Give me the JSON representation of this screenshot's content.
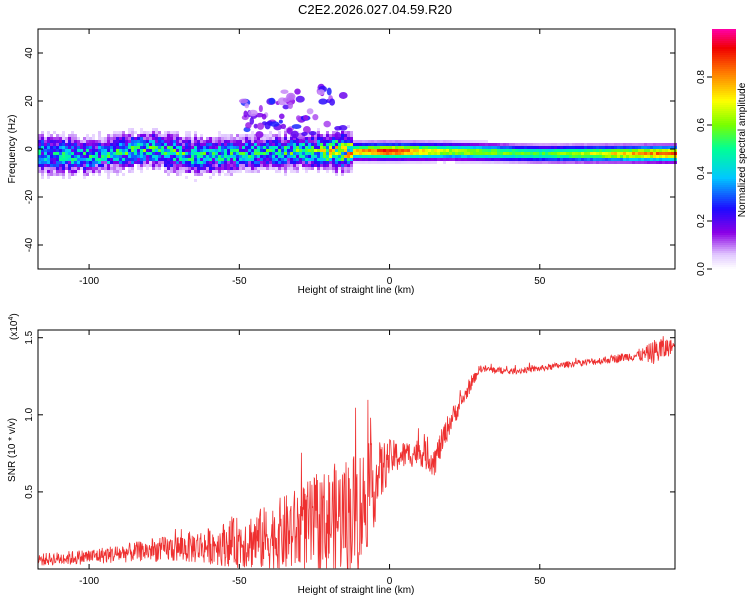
{
  "title": "C2E2.2026.027.04.59.R20",
  "chart_data": [
    {
      "type": "heatmap",
      "name": "spectrogram",
      "xlabel": "Height of straight line (km)",
      "ylabel": "Frequency (Hz)",
      "xlim": [
        -117,
        95
      ],
      "ylim": [
        -50,
        50
      ],
      "xticks": [
        -100,
        -50,
        0,
        50
      ],
      "yticks": [
        -40,
        -20,
        0,
        20,
        40
      ],
      "colorbar": {
        "label": "Normalized spectral amplitude",
        "range": [
          0,
          1
        ],
        "ticks": [
          0.0,
          0.2,
          0.4,
          0.6,
          0.8
        ],
        "tick_labels": [
          "0.0",
          "0.2",
          "0.4",
          "0.6",
          "0.8"
        ]
      },
      "ridge": [
        {
          "x": -117,
          "f": -2,
          "amp": 0.45
        },
        {
          "x": -100,
          "f": -3,
          "amp": 0.45
        },
        {
          "x": -80,
          "f": 0,
          "amp": 0.5
        },
        {
          "x": -65,
          "f": -3,
          "amp": 0.5
        },
        {
          "x": -50,
          "f": -2,
          "amp": 0.45
        },
        {
          "x": -30,
          "f": -1,
          "amp": 0.5
        },
        {
          "x": -15,
          "f": -1,
          "amp": 0.7
        },
        {
          "x": 0,
          "f": -1,
          "amp": 0.9
        },
        {
          "x": 20,
          "f": -1,
          "amp": 0.65
        },
        {
          "x": 50,
          "f": -2,
          "amp": 0.55
        },
        {
          "x": 80,
          "f": -2,
          "amp": 0.75
        },
        {
          "x": 95,
          "f": -2,
          "amp": 0.85
        }
      ],
      "scatter_region": {
        "x_range": [
          -50,
          -15
        ],
        "f_range": [
          5,
          30
        ]
      }
    },
    {
      "type": "line",
      "name": "snr",
      "xlabel": "Height of straight line (km)",
      "ylabel": "SNR (10 * v/v)",
      "y_multiplier_label": "(x10",
      "y_multiplier_exp": "4",
      "xlim": [
        -117,
        95
      ],
      "ylim": [
        0,
        1.55
      ],
      "xticks": [
        -100,
        -50,
        0,
        50
      ],
      "yticks": [
        0.5,
        1.0,
        1.5
      ],
      "ytick_labels": [
        "0.5",
        "1.0",
        "1.5"
      ],
      "color": "#ee3030",
      "series": [
        {
          "name": "SNR",
          "x": [
            -117,
            -100,
            -80,
            -60,
            -40,
            -25,
            -15,
            -10,
            0,
            5,
            10,
            15,
            20,
            25,
            30,
            40,
            50,
            60,
            70,
            80,
            85,
            90,
            95
          ],
          "base": [
            0.06,
            0.08,
            0.12,
            0.15,
            0.2,
            0.28,
            0.35,
            0.38,
            0.72,
            0.74,
            0.76,
            0.7,
            0.95,
            1.12,
            1.3,
            1.28,
            1.3,
            1.33,
            1.35,
            1.38,
            1.39,
            1.42,
            1.45
          ],
          "noise": [
            0.04,
            0.05,
            0.07,
            0.12,
            0.22,
            0.32,
            0.38,
            0.42,
            0.12,
            0.09,
            0.09,
            0.1,
            0.08,
            0.05,
            0.025,
            0.02,
            0.02,
            0.02,
            0.025,
            0.03,
            0.05,
            0.1,
            0.03
          ]
        }
      ]
    }
  ]
}
